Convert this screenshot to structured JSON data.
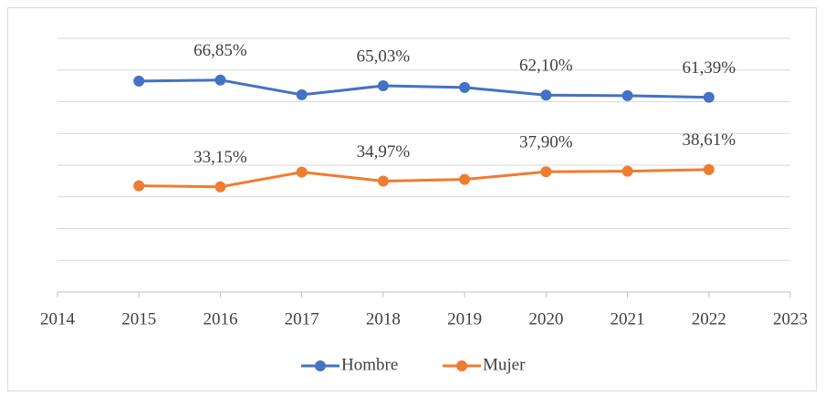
{
  "chart_data": {
    "type": "line",
    "x": [
      2015,
      2016,
      2017,
      2018,
      2019,
      2020,
      2021,
      2022
    ],
    "series": [
      {
        "name": "Hombre",
        "color": "#4472c4",
        "values": [
          66.5,
          66.85,
          62.2,
          65.03,
          64.5,
          62.1,
          61.9,
          61.39
        ],
        "value_labels": [
          null,
          "66,85%",
          null,
          "65,03%",
          null,
          "62,10%",
          null,
          "61,39%"
        ]
      },
      {
        "name": "Mujer",
        "color": "#ed7d31",
        "values": [
          33.5,
          33.15,
          37.8,
          34.97,
          35.5,
          37.9,
          38.1,
          38.61
        ],
        "value_labels": [
          null,
          "33,15%",
          null,
          "34,97%",
          null,
          "37,90%",
          null,
          "38,61%"
        ]
      }
    ],
    "xlim": [
      2014,
      2023
    ],
    "xticks": [
      2014,
      2015,
      2016,
      2017,
      2018,
      2019,
      2020,
      2021,
      2022,
      2023
    ],
    "ylim": [
      0,
      80
    ],
    "yticks": [
      0,
      10,
      20,
      30,
      40,
      50,
      60,
      70,
      80
    ],
    "grid": true,
    "legend": "bottom"
  }
}
